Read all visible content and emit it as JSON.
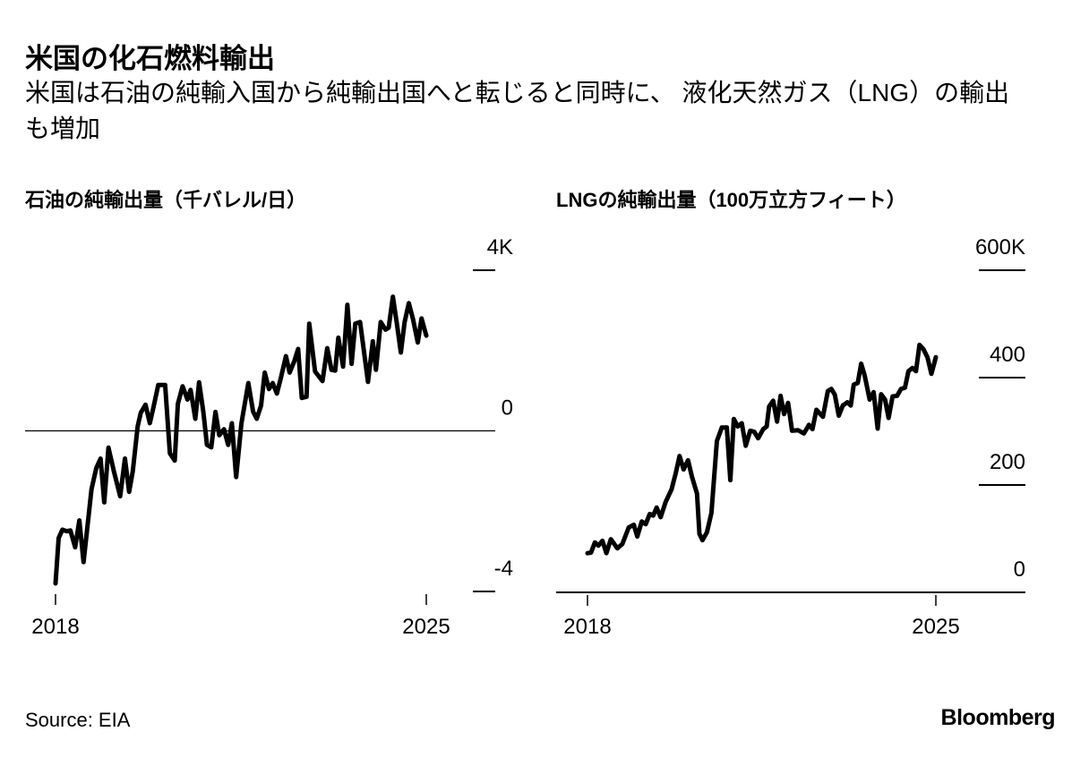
{
  "title": "米国の化石燃料輸出",
  "subtitle": "米国は石油の純輸入国から純輸出国へと転じると同時に、 液化天然ガス（LNG）の輸出も増加",
  "source": "Source: EIA",
  "logo": "Bloomberg",
  "chart_data": [
    {
      "type": "line",
      "title": "石油の純輸出量（千バレル/日）",
      "x_ticks": [
        "2018",
        "2025"
      ],
      "y_ticks": [
        {
          "value": 4,
          "label": "4K"
        },
        {
          "value": 0,
          "label": "0"
        },
        {
          "value": -4,
          "label": "-4"
        }
      ],
      "xlim": [
        2018,
        2025
      ],
      "ylim": [
        -4,
        4
      ],
      "zero_line": true,
      "color": "#000000",
      "series": [
        {
          "points": [
            [
              2018.0,
              -3.8
            ],
            [
              2018.06,
              -2.67
            ],
            [
              2018.13,
              -2.46
            ],
            [
              2018.21,
              -2.5
            ],
            [
              2018.28,
              -2.48
            ],
            [
              2018.37,
              -2.9
            ],
            [
              2018.45,
              -2.23
            ],
            [
              2018.53,
              -3.27
            ],
            [
              2018.68,
              -1.45
            ],
            [
              2018.77,
              -0.93
            ],
            [
              2018.85,
              -0.69
            ],
            [
              2018.92,
              -1.78
            ],
            [
              2019.0,
              -0.42
            ],
            [
              2019.1,
              -1.0
            ],
            [
              2019.22,
              -1.63
            ],
            [
              2019.31,
              -0.69
            ],
            [
              2019.39,
              -1.52
            ],
            [
              2019.46,
              -1.0
            ],
            [
              2019.55,
              0.11
            ],
            [
              2019.61,
              0.45
            ],
            [
              2019.7,
              0.65
            ],
            [
              2019.78,
              0.19
            ],
            [
              2019.85,
              0.59
            ],
            [
              2019.94,
              1.14
            ],
            [
              2020.07,
              1.14
            ],
            [
              2020.16,
              -0.56
            ],
            [
              2020.25,
              -0.74
            ],
            [
              2020.31,
              0.67
            ],
            [
              2020.4,
              1.11
            ],
            [
              2020.49,
              0.78
            ],
            [
              2020.55,
              1.02
            ],
            [
              2020.64,
              0.3
            ],
            [
              2020.71,
              1.21
            ],
            [
              2020.79,
              0.48
            ],
            [
              2020.86,
              -0.35
            ],
            [
              2020.94,
              -0.41
            ],
            [
              2021.02,
              0.47
            ],
            [
              2021.09,
              -0.11
            ],
            [
              2021.18,
              0.04
            ],
            [
              2021.26,
              -0.35
            ],
            [
              2021.33,
              0.19
            ],
            [
              2021.41,
              -1.15
            ],
            [
              2021.51,
              0.19
            ],
            [
              2021.64,
              1.19
            ],
            [
              2021.73,
              0.48
            ],
            [
              2021.8,
              0.3
            ],
            [
              2021.88,
              0.63
            ],
            [
              2021.95,
              1.45
            ],
            [
              2022.03,
              1.04
            ],
            [
              2022.1,
              1.19
            ],
            [
              2022.18,
              0.93
            ],
            [
              2022.25,
              1.3
            ],
            [
              2022.35,
              1.86
            ],
            [
              2022.42,
              1.45
            ],
            [
              2022.51,
              1.74
            ],
            [
              2022.58,
              2.04
            ],
            [
              2022.65,
              0.82
            ],
            [
              2022.74,
              0.85
            ],
            [
              2022.79,
              2.67
            ],
            [
              2022.9,
              1.48
            ],
            [
              2023.04,
              1.24
            ],
            [
              2023.13,
              2.06
            ],
            [
              2023.21,
              1.52
            ],
            [
              2023.28,
              1.5
            ],
            [
              2023.34,
              2.32
            ],
            [
              2023.43,
              1.6
            ],
            [
              2023.51,
              3.14
            ],
            [
              2023.59,
              1.67
            ],
            [
              2023.66,
              2.67
            ],
            [
              2023.75,
              2.71
            ],
            [
              2023.9,
              1.22
            ],
            [
              2023.99,
              2.23
            ],
            [
              2024.05,
              1.52
            ],
            [
              2024.14,
              2.71
            ],
            [
              2024.23,
              2.52
            ],
            [
              2024.29,
              2.57
            ],
            [
              2024.37,
              3.34
            ],
            [
              2024.44,
              2.71
            ],
            [
              2024.52,
              1.95
            ],
            [
              2024.59,
              2.71
            ],
            [
              2024.67,
              3.18
            ],
            [
              2024.75,
              2.78
            ],
            [
              2024.84,
              2.2
            ],
            [
              2024.91,
              2.8
            ],
            [
              2025.0,
              2.37
            ]
          ]
        }
      ]
    },
    {
      "type": "line",
      "title": "LNGの純輸出量（100万立方フィート）",
      "x_ticks": [
        "2018",
        "2025"
      ],
      "y_ticks": [
        {
          "value": 600,
          "label": "600K"
        },
        {
          "value": 400,
          "label": "400"
        },
        {
          "value": 200,
          "label": "200"
        },
        {
          "value": 0,
          "label": "0"
        }
      ],
      "xlim": [
        2018,
        2025
      ],
      "ylim": [
        0,
        600
      ],
      "color": "#000000",
      "series": [
        {
          "points": [
            [
              2018.0,
              73
            ],
            [
              2018.07,
              74
            ],
            [
              2018.15,
              93
            ],
            [
              2018.22,
              87
            ],
            [
              2018.3,
              96
            ],
            [
              2018.38,
              73
            ],
            [
              2018.47,
              99
            ],
            [
              2018.6,
              82
            ],
            [
              2018.7,
              90
            ],
            [
              2018.83,
              121
            ],
            [
              2018.93,
              126
            ],
            [
              2019.0,
              104
            ],
            [
              2019.09,
              132
            ],
            [
              2019.17,
              127
            ],
            [
              2019.25,
              146
            ],
            [
              2019.32,
              143
            ],
            [
              2019.39,
              158
            ],
            [
              2019.47,
              140
            ],
            [
              2019.57,
              168
            ],
            [
              2019.69,
              192
            ],
            [
              2019.77,
              221
            ],
            [
              2019.85,
              254
            ],
            [
              2019.93,
              229
            ],
            [
              2020.02,
              246
            ],
            [
              2020.1,
              215
            ],
            [
              2020.2,
              184
            ],
            [
              2020.25,
              109
            ],
            [
              2020.31,
              97
            ],
            [
              2020.4,
              112
            ],
            [
              2020.49,
              148
            ],
            [
              2020.6,
              282
            ],
            [
              2020.7,
              307
            ],
            [
              2020.8,
              307
            ],
            [
              2020.87,
              209
            ],
            [
              2020.94,
              323
            ],
            [
              2021.02,
              309
            ],
            [
              2021.1,
              315
            ],
            [
              2021.18,
              273
            ],
            [
              2021.27,
              301
            ],
            [
              2021.35,
              299
            ],
            [
              2021.43,
              287
            ],
            [
              2021.53,
              304
            ],
            [
              2021.6,
              309
            ],
            [
              2021.65,
              346
            ],
            [
              2021.73,
              357
            ],
            [
              2021.81,
              318
            ],
            [
              2021.88,
              366
            ],
            [
              2021.95,
              332
            ],
            [
              2022.03,
              353
            ],
            [
              2022.11,
              301
            ],
            [
              2022.23,
              302
            ],
            [
              2022.35,
              296
            ],
            [
              2022.45,
              312
            ],
            [
              2022.52,
              304
            ],
            [
              2022.6,
              340
            ],
            [
              2022.73,
              327
            ],
            [
              2022.83,
              375
            ],
            [
              2022.9,
              379
            ],
            [
              2022.97,
              368
            ],
            [
              2023.05,
              329
            ],
            [
              2023.13,
              348
            ],
            [
              2023.22,
              354
            ],
            [
              2023.29,
              348
            ],
            [
              2023.35,
              387
            ],
            [
              2023.43,
              390
            ],
            [
              2023.5,
              426
            ],
            [
              2023.57,
              404
            ],
            [
              2023.67,
              359
            ],
            [
              2023.75,
              373
            ],
            [
              2023.83,
              305
            ],
            [
              2023.9,
              369
            ],
            [
              2023.98,
              359
            ],
            [
              2024.05,
              325
            ],
            [
              2024.13,
              365
            ],
            [
              2024.22,
              366
            ],
            [
              2024.3,
              379
            ],
            [
              2024.38,
              381
            ],
            [
              2024.45,
              412
            ],
            [
              2024.53,
              418
            ],
            [
              2024.6,
              412
            ],
            [
              2024.67,
              461
            ],
            [
              2024.75,
              453
            ],
            [
              2024.83,
              438
            ],
            [
              2024.91,
              407
            ],
            [
              2025.0,
              438
            ]
          ]
        }
      ]
    }
  ]
}
